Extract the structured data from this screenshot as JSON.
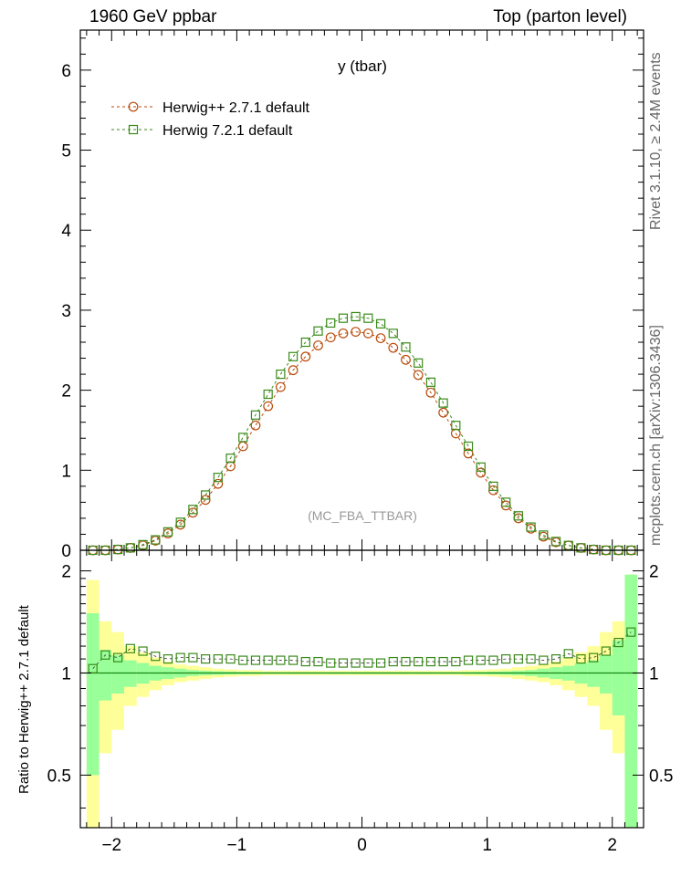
{
  "header": {
    "left": "1960 GeV ppbar",
    "right": "Top (parton level)"
  },
  "side": {
    "rivet": "Rivet 3.1.10, ≥ 2.4M events",
    "mcplots": "mcplots.cern.ch [arXiv:1306.3436]"
  },
  "chart_data": [
    {
      "type": "line",
      "title": "y (tbar)",
      "watermark": "(MC_FBA_TTBAR)",
      "xlabel": "",
      "ylabel": "",
      "xlim": [
        -2.25,
        2.25
      ],
      "ylim": [
        0,
        6.5
      ],
      "yticks": [
        "0",
        "1",
        "2",
        "3",
        "4",
        "5",
        "6"
      ],
      "x": [
        -2.15,
        -2.05,
        -1.95,
        -1.85,
        -1.75,
        -1.65,
        -1.55,
        -1.45,
        -1.35,
        -1.25,
        -1.15,
        -1.05,
        -0.95,
        -0.85,
        -0.75,
        -0.65,
        -0.55,
        -0.45,
        -0.35,
        -0.25,
        -0.15,
        -0.05,
        0.05,
        0.15,
        0.25,
        0.35,
        0.45,
        0.55,
        0.65,
        0.75,
        0.85,
        0.95,
        1.05,
        1.15,
        1.25,
        1.35,
        1.45,
        1.55,
        1.65,
        1.75,
        1.85,
        1.95,
        2.05,
        2.15
      ],
      "series": [
        {
          "name": "Herwig++ 2.7.1 default",
          "color": "#b84a0a",
          "marker": "circle",
          "values": [
            0.0,
            0.0,
            0.01,
            0.03,
            0.06,
            0.12,
            0.21,
            0.32,
            0.47,
            0.63,
            0.83,
            1.05,
            1.3,
            1.56,
            1.8,
            2.04,
            2.25,
            2.42,
            2.56,
            2.66,
            2.71,
            2.73,
            2.71,
            2.65,
            2.53,
            2.38,
            2.19,
            1.97,
            1.72,
            1.46,
            1.21,
            0.97,
            0.75,
            0.56,
            0.4,
            0.27,
            0.17,
            0.1,
            0.06,
            0.03,
            0.01,
            0.0,
            0.0,
            0.0
          ]
        },
        {
          "name": "Herwig 7.2.1 default",
          "color": "#3a8a1a",
          "marker": "square",
          "values": [
            0.0,
            0.0,
            0.01,
            0.03,
            0.07,
            0.13,
            0.23,
            0.35,
            0.51,
            0.69,
            0.91,
            1.15,
            1.41,
            1.69,
            1.95,
            2.2,
            2.42,
            2.6,
            2.74,
            2.84,
            2.9,
            2.92,
            2.9,
            2.83,
            2.71,
            2.54,
            2.34,
            2.1,
            1.84,
            1.56,
            1.3,
            1.04,
            0.8,
            0.6,
            0.43,
            0.29,
            0.19,
            0.11,
            0.06,
            0.03,
            0.01,
            0.0,
            0.0,
            0.0
          ]
        }
      ]
    },
    {
      "type": "line",
      "title": "",
      "xlabel": "",
      "ylabel": "Ratio to Herwig++ 2.7.1 default",
      "xlim": [
        -2.25,
        2.25
      ],
      "ylim": [
        0.35,
        2.3
      ],
      "xticks": [
        "−2",
        "−1",
        "0",
        "1",
        "2"
      ],
      "yticks": [
        "0.5",
        "1",
        "2"
      ],
      "x": [
        -2.15,
        -2.05,
        -1.95,
        -1.85,
        -1.75,
        -1.65,
        -1.55,
        -1.45,
        -1.35,
        -1.25,
        -1.15,
        -1.05,
        -0.95,
        -0.85,
        -0.75,
        -0.65,
        -0.55,
        -0.45,
        -0.35,
        -0.25,
        -0.15,
        -0.05,
        0.05,
        0.15,
        0.25,
        0.35,
        0.45,
        0.55,
        0.65,
        0.75,
        0.85,
        0.95,
        1.05,
        1.15,
        1.25,
        1.35,
        1.45,
        1.55,
        1.65,
        1.75,
        1.85,
        1.95,
        2.05,
        2.15
      ],
      "series": [
        {
          "name": "Herwig 7.2.1 default",
          "color": "#3a8a1a",
          "values": [
            1.03,
            1.13,
            1.11,
            1.18,
            1.16,
            1.12,
            1.1,
            1.11,
            1.11,
            1.1,
            1.1,
            1.1,
            1.09,
            1.09,
            1.09,
            1.09,
            1.09,
            1.08,
            1.08,
            1.07,
            1.07,
            1.07,
            1.07,
            1.07,
            1.08,
            1.08,
            1.08,
            1.08,
            1.08,
            1.08,
            1.09,
            1.09,
            1.09,
            1.1,
            1.1,
            1.1,
            1.09,
            1.1,
            1.14,
            1.1,
            1.11,
            1.16,
            1.23,
            1.32
          ]
        }
      ],
      "band_yellow": [
        0.88,
        0.42,
        0.32,
        0.2,
        0.15,
        0.11,
        0.08,
        0.06,
        0.05,
        0.04,
        0.03,
        0.025,
        0.02,
        0.02,
        0.015,
        0.015,
        0.015,
        0.015,
        0.015,
        0.015,
        0.015,
        0.015,
        0.015,
        0.015,
        0.015,
        0.015,
        0.015,
        0.015,
        0.015,
        0.015,
        0.02,
        0.02,
        0.025,
        0.03,
        0.04,
        0.05,
        0.06,
        0.08,
        0.11,
        0.15,
        0.2,
        0.32,
        0.42,
        0.95
      ],
      "band_green": [
        0.5,
        0.17,
        0.13,
        0.09,
        0.07,
        0.05,
        0.04,
        0.03,
        0.02,
        0.015,
        0.012,
        0.01,
        0.008,
        0.007,
        0.006,
        0.006,
        0.006,
        0.006,
        0.006,
        0.006,
        0.006,
        0.006,
        0.006,
        0.006,
        0.006,
        0.006,
        0.006,
        0.006,
        0.006,
        0.006,
        0.007,
        0.008,
        0.01,
        0.012,
        0.015,
        0.02,
        0.03,
        0.04,
        0.05,
        0.07,
        0.09,
        0.13,
        0.25,
        0.95
      ]
    }
  ]
}
